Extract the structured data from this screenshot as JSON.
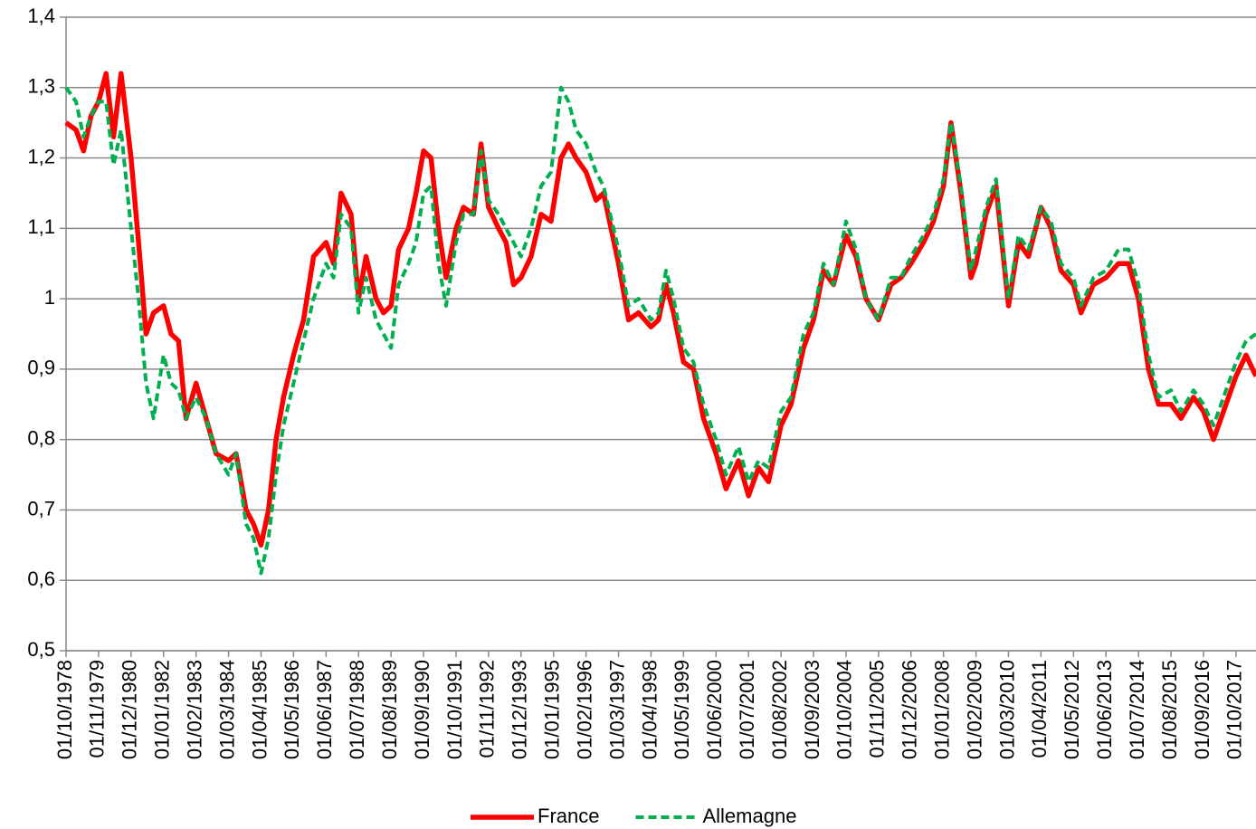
{
  "chart_data": {
    "type": "line",
    "x": [
      "01/10/1978",
      "01/02/1979",
      "01/05/1979",
      "01/08/1979",
      "01/11/1979",
      "01/02/1980",
      "01/05/1980",
      "01/08/1980",
      "01/12/1980",
      "01/03/1981",
      "01/06/1981",
      "01/09/1981",
      "01/01/1982",
      "01/04/1982",
      "01/07/1982",
      "01/10/1982",
      "01/02/1983",
      "01/06/1983",
      "01/10/1983",
      "01/03/1984",
      "01/06/1984",
      "01/10/1984",
      "01/01/1985",
      "01/04/1985",
      "01/07/1985",
      "01/10/1985",
      "01/01/1986",
      "01/05/1986",
      "01/09/1986",
      "01/01/1987",
      "01/06/1987",
      "01/09/1987",
      "01/12/1987",
      "01/04/1988",
      "01/07/1988",
      "01/10/1988",
      "01/02/1989",
      "01/05/1989",
      "01/08/1989",
      "01/11/1989",
      "01/03/1990",
      "01/06/1990",
      "01/09/1990",
      "01/12/1990",
      "01/03/1991",
      "01/06/1991",
      "01/10/1991",
      "01/01/1992",
      "01/05/1992",
      "01/08/1992",
      "01/11/1992",
      "01/03/1993",
      "01/06/1993",
      "01/09/1993",
      "01/12/1993",
      "01/04/1994",
      "01/08/1994",
      "01/12/1994",
      "01/04/1995",
      "01/07/1995",
      "01/10/1995",
      "01/02/1996",
      "01/06/1996",
      "01/09/1996",
      "01/03/1997",
      "01/07/1997",
      "01/11/1997",
      "01/04/1998",
      "01/07/1998",
      "01/10/1998",
      "01/01/1999",
      "01/05/1999",
      "01/09/1999",
      "01/01/2000",
      "01/06/2000",
      "01/10/2000",
      "01/03/2001",
      "01/07/2001",
      "01/11/2001",
      "01/03/2002",
      "01/08/2002",
      "01/12/2002",
      "01/05/2003",
      "01/09/2003",
      "01/01/2004",
      "01/05/2004",
      "01/10/2004",
      "01/02/2005",
      "01/06/2005",
      "01/11/2005",
      "01/04/2006",
      "01/08/2006",
      "01/12/2006",
      "01/05/2007",
      "01/09/2007",
      "01/01/2008",
      "01/04/2008",
      "01/08/2008",
      "01/12/2008",
      "01/02/2009",
      "01/06/2009",
      "01/10/2009",
      "01/03/2010",
      "01/07/2010",
      "01/11/2010",
      "01/04/2011",
      "01/08/2011",
      "01/12/2011",
      "01/05/2012",
      "01/08/2012",
      "01/01/2013",
      "01/06/2013",
      "01/11/2013",
      "01/03/2014",
      "01/07/2014",
      "01/11/2014",
      "01/03/2015",
      "01/08/2015",
      "01/12/2015",
      "01/05/2016",
      "01/09/2016",
      "01/01/2017",
      "01/06/2017",
      "01/10/2017",
      "01/02/2018",
      "01/06/2018"
    ],
    "series": [
      {
        "name": "France",
        "color": "#ff0000",
        "dash": false,
        "values": [
          1.25,
          1.24,
          1.21,
          1.26,
          1.28,
          1.32,
          1.23,
          1.32,
          1.2,
          1.08,
          0.95,
          0.98,
          0.99,
          0.95,
          0.94,
          0.83,
          0.88,
          0.83,
          0.78,
          0.77,
          0.78,
          0.7,
          0.68,
          0.65,
          0.7,
          0.8,
          0.86,
          0.92,
          0.97,
          1.06,
          1.08,
          1.05,
          1.15,
          1.12,
          1.0,
          1.06,
          1.0,
          0.98,
          0.99,
          1.07,
          1.1,
          1.15,
          1.21,
          1.2,
          1.1,
          1.03,
          1.1,
          1.13,
          1.12,
          1.22,
          1.13,
          1.1,
          1.08,
          1.02,
          1.03,
          1.06,
          1.12,
          1.11,
          1.2,
          1.22,
          1.2,
          1.18,
          1.14,
          1.15,
          1.05,
          0.97,
          0.98,
          0.96,
          0.97,
          1.02,
          0.98,
          0.91,
          0.9,
          0.83,
          0.78,
          0.73,
          0.77,
          0.72,
          0.76,
          0.74,
          0.82,
          0.85,
          0.93,
          0.97,
          1.04,
          1.02,
          1.09,
          1.06,
          1.0,
          0.97,
          1.02,
          1.03,
          1.05,
          1.08,
          1.11,
          1.16,
          1.25,
          1.15,
          1.03,
          1.05,
          1.12,
          1.16,
          0.99,
          1.08,
          1.06,
          1.13,
          1.1,
          1.04,
          1.02,
          0.98,
          1.02,
          1.03,
          1.05,
          1.05,
          1.0,
          0.9,
          0.85,
          0.85,
          0.83,
          0.86,
          0.84,
          0.8,
          0.85,
          0.89,
          0.92,
          0.89
        ]
      },
      {
        "name": "Allemagne",
        "color": "#00b050",
        "dash": true,
        "values": [
          1.3,
          1.28,
          1.23,
          1.26,
          1.28,
          1.28,
          1.19,
          1.24,
          1.1,
          1.0,
          0.88,
          0.83,
          0.92,
          0.88,
          0.87,
          0.83,
          0.86,
          0.83,
          0.78,
          0.75,
          0.78,
          0.68,
          0.66,
          0.61,
          0.66,
          0.75,
          0.82,
          0.88,
          0.94,
          1.0,
          1.05,
          1.03,
          1.12,
          1.1,
          0.98,
          1.03,
          0.97,
          0.95,
          0.93,
          1.02,
          1.05,
          1.08,
          1.15,
          1.16,
          1.05,
          0.99,
          1.08,
          1.12,
          1.12,
          1.21,
          1.14,
          1.12,
          1.1,
          1.08,
          1.06,
          1.1,
          1.16,
          1.18,
          1.3,
          1.28,
          1.24,
          1.22,
          1.18,
          1.16,
          1.07,
          0.99,
          1.0,
          0.97,
          0.98,
          1.04,
          1.0,
          0.93,
          0.91,
          0.85,
          0.8,
          0.75,
          0.79,
          0.74,
          0.77,
          0.76,
          0.84,
          0.86,
          0.95,
          0.98,
          1.05,
          1.02,
          1.11,
          1.07,
          1.0,
          0.97,
          1.03,
          1.03,
          1.06,
          1.09,
          1.12,
          1.17,
          1.25,
          1.16,
          1.04,
          1.07,
          1.13,
          1.17,
          1.0,
          1.09,
          1.07,
          1.13,
          1.11,
          1.05,
          1.03,
          0.99,
          1.03,
          1.04,
          1.07,
          1.07,
          1.02,
          0.92,
          0.86,
          0.87,
          0.84,
          0.87,
          0.85,
          0.82,
          0.87,
          0.91,
          0.94,
          0.95
        ]
      }
    ],
    "xlim": [
      "01/10/1978",
      "01/06/2018"
    ],
    "xticks": [
      "01/10/1978",
      "01/11/1979",
      "01/12/1980",
      "01/01/1982",
      "01/02/1983",
      "01/03/1984",
      "01/04/1985",
      "01/05/1986",
      "01/06/1987",
      "01/07/1988",
      "01/08/1989",
      "01/09/1990",
      "01/10/1991",
      "01/11/1992",
      "01/12/1993",
      "01/01/1995",
      "01/02/1996",
      "01/03/1997",
      "01/04/1998",
      "01/05/1999",
      "01/06/2000",
      "01/07/2001",
      "01/08/2002",
      "01/09/2003",
      "01/10/2004",
      "01/11/2005",
      "01/12/2006",
      "01/01/2008",
      "01/02/2009",
      "01/03/2010",
      "01/04/2011",
      "01/05/2012",
      "01/06/2013",
      "01/07/2014",
      "01/08/2015",
      "01/09/2016",
      "01/10/2017"
    ],
    "ylim": [
      0.5,
      1.4
    ],
    "yticks": [
      {
        "value": 0.5,
        "label": "0,5"
      },
      {
        "value": 0.6,
        "label": "0,6"
      },
      {
        "value": 0.7,
        "label": "0,7"
      },
      {
        "value": 0.8,
        "label": "0,8"
      },
      {
        "value": 0.9,
        "label": "0,9"
      },
      1,
      {
        "value": 1.1,
        "label": "1,1"
      },
      {
        "value": 1.2,
        "label": "1,2"
      },
      {
        "value": 1.3,
        "label": "1,3"
      },
      {
        "value": 1.4,
        "label": "1,4"
      }
    ],
    "grid": true,
    "legend": "bottom"
  }
}
